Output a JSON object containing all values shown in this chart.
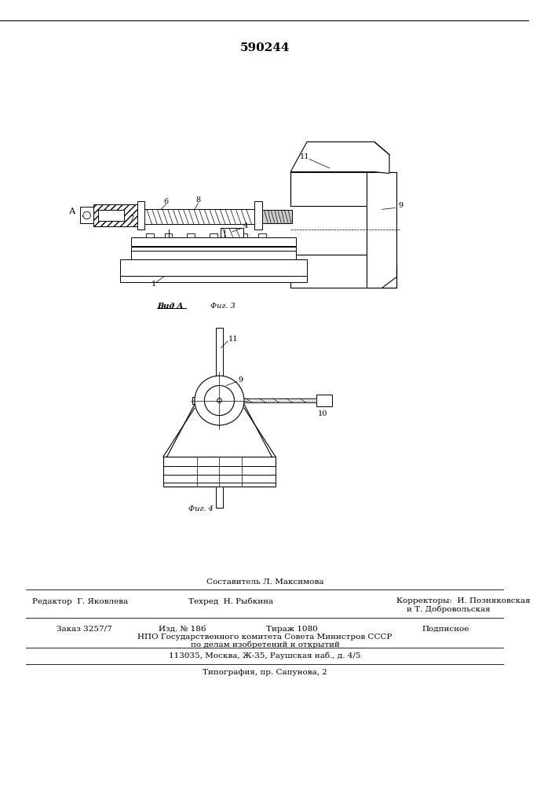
{
  "patent_number": "590244",
  "fig3_label": "Фиг. 3",
  "fig4_label": "Фиг. 4",
  "vid_a_label": "Вид А",
  "arrow_a_label": "А",
  "bottom_text_line1": "Составитель Л. Максимова",
  "bottom_text_line2_left": "Редактор  Г. Яковлева",
  "bottom_text_line2_mid": "Техред  Н. Рыбкина",
  "bottom_text_line2_right": "Корректоры:  И. Позняковская",
  "bottom_text_line2_right2": "и Т. Добровольская",
  "bottom_text_line3_1": "Заказ 3257/7",
  "bottom_text_line3_2": "Изд. № 186",
  "bottom_text_line3_3": "Тираж 1080",
  "bottom_text_line3_4": "Подписное",
  "bottom_text_line4": "НПО Государственного комитета Совета Министров СССР",
  "bottom_text_line5": "по делам изобретений и открытий",
  "bottom_text_line6": "113035, Москва, Ж-35, Раушская наб., д. 4/5",
  "bottom_text_line7": "Типография, пр. Сапунова, 2",
  "bg_color": "#ffffff",
  "line_color": "#000000"
}
